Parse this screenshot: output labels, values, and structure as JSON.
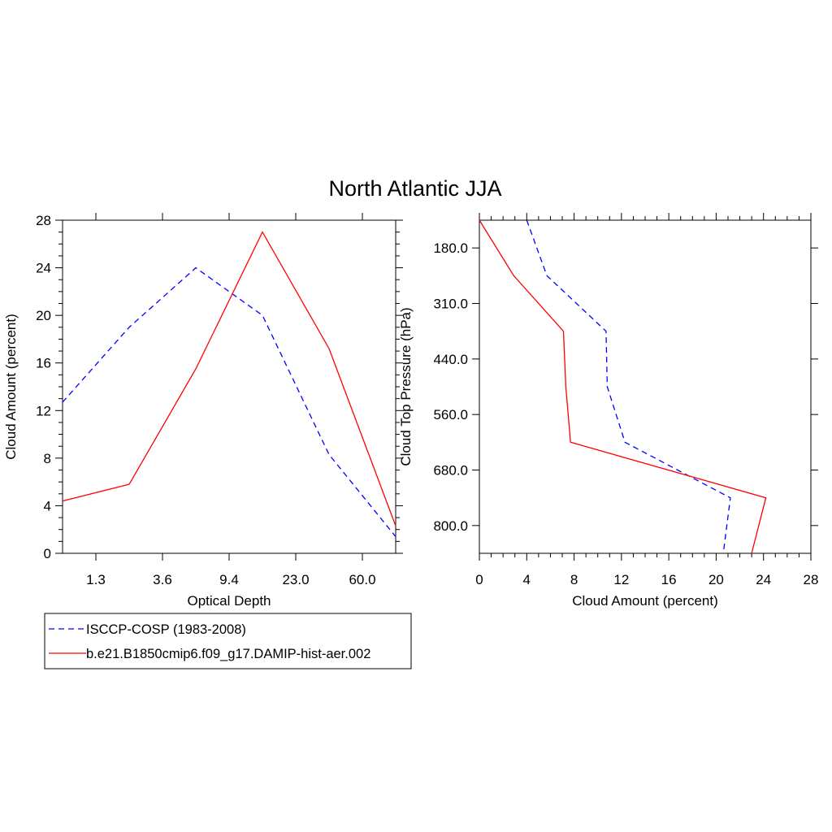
{
  "title": "North Atlantic JJA",
  "colors": {
    "obs": "#0000ff",
    "model": "#ff0000",
    "axis": "#000000"
  },
  "legend": {
    "placement": "bottom-left",
    "entries": [
      {
        "label": "ISCCP-COSP (1983-2008)",
        "color": "#0000ff",
        "dash": "dashed"
      },
      {
        "label": "b.e21.B1850cmip6.f09_g17.DAMIP-hist-aer.002",
        "color": "#ff0000",
        "dash": "solid"
      }
    ]
  },
  "chart_data": [
    {
      "type": "line",
      "xlabel": "Optical Depth",
      "ylabel": "Cloud Amount (percent)",
      "x_tick_labels": [
        "1.3",
        "3.6",
        "9.4",
        "23.0",
        "60.0"
      ],
      "x_bins": [
        1,
        2,
        3,
        4,
        5,
        6
      ],
      "ylim": [
        0,
        28
      ],
      "y_ticks": [
        0,
        4,
        8,
        12,
        16,
        20,
        24,
        28
      ],
      "series": [
        {
          "name": "ISCCP-COSP (1983-2008)",
          "values": [
            12.7,
            19.0,
            24.0,
            20.0,
            8.3,
            1.4
          ]
        },
        {
          "name": "b.e21.B1850cmip6.f09_g17.DAMIP-hist-aer.002",
          "values": [
            4.4,
            5.8,
            15.5,
            27.0,
            17.2,
            2.3
          ]
        }
      ]
    },
    {
      "type": "line",
      "xlabel": "Cloud Amount (percent)",
      "ylabel": "Cloud Top Pressure (hPa)",
      "xlim": [
        0,
        28
      ],
      "x_ticks": [
        0,
        4,
        8,
        12,
        16,
        20,
        24,
        28
      ],
      "y_tick_labels": [
        "180.0",
        "310.0",
        "440.0",
        "560.0",
        "680.0",
        "800.0"
      ],
      "y_bins": [
        1,
        2,
        3,
        4,
        5,
        6,
        7
      ],
      "series": [
        {
          "name": "ISCCP-COSP (1983-2008)",
          "values": [
            4.0,
            5.7,
            10.7,
            10.8,
            12.3,
            21.2,
            20.6
          ]
        },
        {
          "name": "b.e21.B1850cmip6.f09_g17.DAMIP-hist-aer.002",
          "values": [
            0.0,
            2.9,
            7.1,
            7.3,
            7.7,
            24.2,
            23.0
          ]
        }
      ]
    }
  ]
}
